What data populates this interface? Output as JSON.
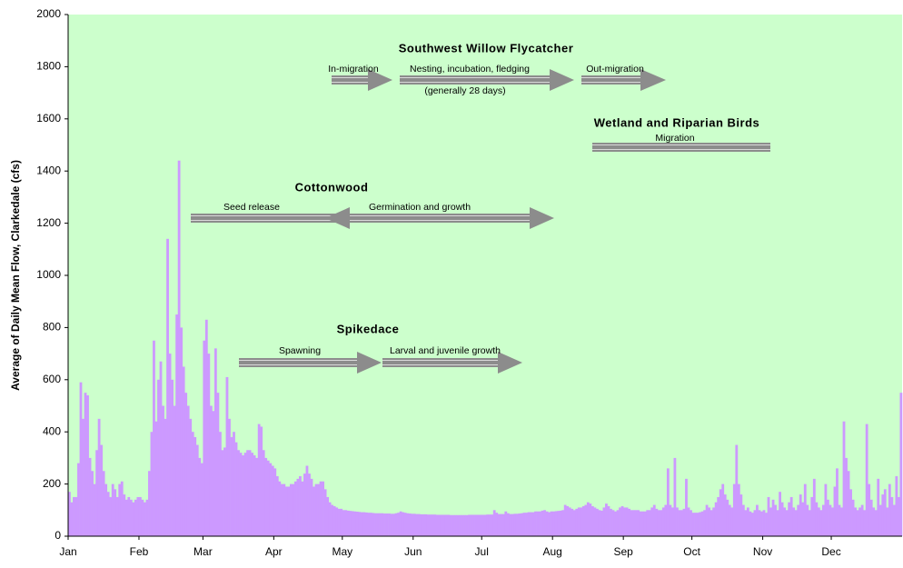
{
  "chart_data": {
    "type": "bar",
    "y_label": "Average of Daily Mean Flow, Clarkedale (cfs)",
    "color": "#cc99ff",
    "background": "#ccffcc",
    "ylim": [
      0,
      2000
    ],
    "yticks": [
      0,
      200,
      400,
      600,
      800,
      1000,
      1200,
      1400,
      1600,
      1800,
      2000
    ],
    "categories": [
      "Jan",
      null,
      null,
      null,
      null,
      null,
      null,
      null,
      null,
      null,
      null,
      null,
      null,
      null,
      null,
      null,
      null,
      null,
      null,
      null,
      null,
      null,
      null,
      null,
      null,
      null,
      null,
      null,
      null,
      null,
      null,
      "Feb",
      null,
      null,
      null,
      null,
      null,
      null,
      null,
      null,
      null,
      null,
      null,
      null,
      null,
      null,
      null,
      null,
      null,
      null,
      null,
      null,
      null,
      null,
      null,
      null,
      null,
      null,
      null,
      "Mar",
      null,
      null,
      null,
      null,
      null,
      null,
      null,
      null,
      null,
      null,
      null,
      null,
      null,
      null,
      null,
      null,
      null,
      null,
      null,
      null,
      null,
      null,
      null,
      null,
      null,
      null,
      null,
      null,
      null,
      null,
      "Apr",
      null,
      null,
      null,
      null,
      null,
      null,
      null,
      null,
      null,
      null,
      null,
      null,
      null,
      null,
      null,
      null,
      null,
      null,
      null,
      null,
      null,
      null,
      null,
      null,
      null,
      null,
      null,
      null,
      null,
      "May",
      null,
      null,
      null,
      null,
      null,
      null,
      null,
      null,
      null,
      null,
      null,
      null,
      null,
      null,
      null,
      null,
      null,
      null,
      null,
      null,
      null,
      null,
      null,
      null,
      null,
      null,
      null,
      null,
      null,
      null,
      "Jun",
      null,
      null,
      null,
      null,
      null,
      null,
      null,
      null,
      null,
      null,
      null,
      null,
      null,
      null,
      null,
      null,
      null,
      null,
      null,
      null,
      null,
      null,
      null,
      null,
      null,
      null,
      null,
      null,
      null,
      "Jul",
      null,
      null,
      null,
      null,
      null,
      null,
      null,
      null,
      null,
      null,
      null,
      null,
      null,
      null,
      null,
      null,
      null,
      null,
      null,
      null,
      null,
      null,
      null,
      null,
      null,
      null,
      null,
      null,
      null,
      null,
      "Aug",
      null,
      null,
      null,
      null,
      null,
      null,
      null,
      null,
      null,
      null,
      null,
      null,
      null,
      null,
      null,
      null,
      null,
      null,
      null,
      null,
      null,
      null,
      null,
      null,
      null,
      null,
      null,
      null,
      null,
      null,
      "Sep",
      null,
      null,
      null,
      null,
      null,
      null,
      null,
      null,
      null,
      null,
      null,
      null,
      null,
      null,
      null,
      null,
      null,
      null,
      null,
      null,
      null,
      null,
      null,
      null,
      null,
      null,
      null,
      null,
      null,
      "Oct",
      null,
      null,
      null,
      null,
      null,
      null,
      null,
      null,
      null,
      null,
      null,
      null,
      null,
      null,
      null,
      null,
      null,
      null,
      null,
      null,
      null,
      null,
      null,
      null,
      null,
      null,
      null,
      null,
      null,
      null,
      "Nov",
      null,
      null,
      null,
      null,
      null,
      null,
      null,
      null,
      null,
      null,
      null,
      null,
      null,
      null,
      null,
      null,
      null,
      null,
      null,
      null,
      null,
      null,
      null,
      null,
      null,
      null,
      null,
      null,
      null,
      "Dec",
      null,
      null,
      null,
      null,
      null,
      null,
      null,
      null,
      null,
      null,
      null,
      null,
      null,
      null,
      null,
      null,
      null,
      null,
      null,
      null,
      null,
      null,
      null,
      null,
      null,
      null,
      null,
      null,
      null,
      null
    ],
    "values": [
      170,
      130,
      150,
      150,
      280,
      590,
      450,
      550,
      540,
      300,
      250,
      200,
      330,
      450,
      350,
      250,
      200,
      170,
      150,
      200,
      180,
      150,
      200,
      210,
      160,
      140,
      150,
      140,
      130,
      140,
      150,
      150,
      140,
      130,
      140,
      250,
      400,
      750,
      440,
      600,
      670,
      500,
      450,
      1140,
      700,
      600,
      500,
      850,
      1440,
      800,
      650,
      550,
      500,
      450,
      400,
      380,
      350,
      300,
      280,
      750,
      830,
      700,
      500,
      480,
      720,
      550,
      400,
      330,
      340,
      610,
      450,
      380,
      400,
      360,
      330,
      320,
      310,
      320,
      330,
      330,
      320,
      310,
      300,
      430,
      420,
      330,
      300,
      290,
      280,
      270,
      260,
      230,
      210,
      200,
      200,
      190,
      190,
      200,
      200,
      210,
      220,
      230,
      210,
      240,
      270,
      240,
      220,
      190,
      200,
      200,
      210,
      210,
      180,
      150,
      130,
      120,
      115,
      110,
      105,
      105,
      100,
      100,
      98,
      97,
      96,
      95,
      94,
      93,
      92,
      92,
      91,
      90,
      90,
      89,
      88,
      88,
      88,
      88,
      87,
      87,
      87,
      86,
      86,
      88,
      90,
      95,
      92,
      90,
      88,
      87,
      86,
      86,
      85,
      85,
      84,
      84,
      84,
      83,
      83,
      83,
      83,
      82,
      82,
      82,
      82,
      82,
      82,
      81,
      81,
      81,
      81,
      81,
      81,
      81,
      81,
      82,
      82,
      82,
      82,
      82,
      82,
      82,
      82,
      83,
      83,
      83,
      100,
      90,
      85,
      85,
      85,
      95,
      88,
      85,
      85,
      86,
      86,
      87,
      88,
      90,
      90,
      92,
      92,
      92,
      95,
      95,
      95,
      98,
      100,
      95,
      92,
      95,
      95,
      96,
      97,
      98,
      100,
      120,
      115,
      110,
      105,
      100,
      105,
      110,
      110,
      115,
      120,
      130,
      125,
      115,
      110,
      105,
      100,
      98,
      110,
      125,
      115,
      105,
      100,
      95,
      100,
      110,
      115,
      110,
      110,
      105,
      100,
      100,
      100,
      100,
      95,
      95,
      95,
      100,
      100,
      110,
      120,
      105,
      100,
      100,
      110,
      120,
      260,
      120,
      110,
      300,
      110,
      100,
      100,
      105,
      220,
      110,
      100,
      90,
      90,
      90,
      92,
      95,
      100,
      120,
      110,
      100,
      110,
      130,
      150,
      180,
      200,
      160,
      140,
      120,
      110,
      200,
      350,
      200,
      160,
      120,
      100,
      110,
      95,
      90,
      100,
      120,
      100,
      95,
      100,
      90,
      150,
      110,
      140,
      120,
      100,
      170,
      130,
      110,
      100,
      130,
      150,
      110,
      100,
      120,
      160,
      130,
      200,
      120,
      100,
      150,
      220,
      130,
      110,
      100,
      120,
      200,
      140,
      120,
      110,
      190,
      260,
      120,
      110,
      440,
      300,
      250,
      180,
      140,
      110,
      100,
      110,
      120,
      100,
      430,
      200,
      140,
      110,
      100,
      220,
      120,
      160,
      180,
      110,
      200,
      150,
      120,
      230,
      150,
      550
    ],
    "annotations": [
      {
        "title": "Southwest Willow Flycatcher",
        "items": [
          "In-migration",
          "Nesting, incubation, fledging",
          "(generally 28 days)",
          "Out-migration"
        ]
      },
      {
        "title": "Wetland and Riparian Birds",
        "items": [
          "Migration"
        ]
      },
      {
        "title": "Cottonwood",
        "items": [
          "Seed release",
          "Germination and growth"
        ]
      },
      {
        "title": "Spikedace",
        "items": [
          "Spawning",
          "Larval and juvenile growth"
        ]
      }
    ]
  }
}
